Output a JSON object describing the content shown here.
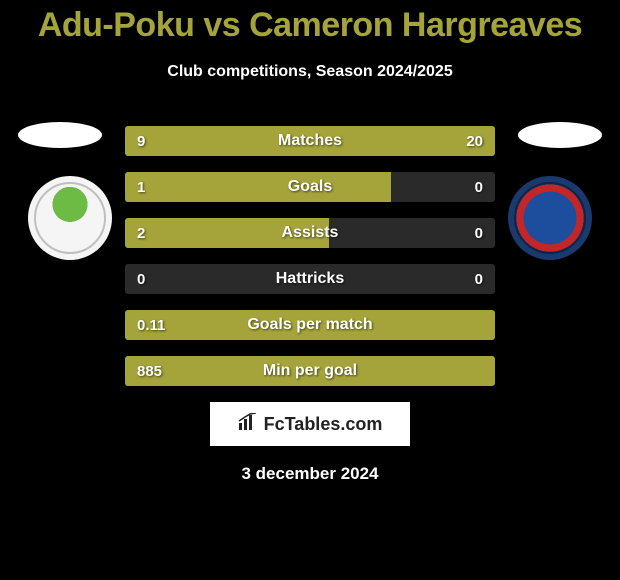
{
  "title": "Adu-Poku vs Cameron Hargreaves",
  "subtitle": "Club competitions, Season 2024/2025",
  "date": "3 december 2024",
  "footer_brand": "FcTables.com",
  "colors": {
    "accent": "#a5a43a",
    "bar_left": "#a5a43a",
    "bar_right_matches": "#a5a43a",
    "bar_neutral": "#2a2a2a",
    "background": "#000000",
    "text": "#ffffff"
  },
  "stats": [
    {
      "label": "Matches",
      "left_value": "9",
      "right_value": "20",
      "left_num": 9,
      "right_num": 20,
      "left_width_pct": 31.0,
      "right_width_pct": 69.0,
      "left_color": "#a5a43a",
      "right_color": "#a5a43a"
    },
    {
      "label": "Goals",
      "left_value": "1",
      "right_value": "0",
      "left_num": 1,
      "right_num": 0,
      "left_width_pct": 72.0,
      "right_width_pct": 0.0,
      "left_color": "#a5a43a",
      "right_color": "#2a2a2a"
    },
    {
      "label": "Assists",
      "left_value": "2",
      "right_value": "0",
      "left_num": 2,
      "right_num": 0,
      "left_width_pct": 55.0,
      "right_width_pct": 0.0,
      "left_color": "#a5a43a",
      "right_color": "#2a2a2a"
    },
    {
      "label": "Hattricks",
      "left_value": "0",
      "right_value": "0",
      "left_num": 0,
      "right_num": 0,
      "left_width_pct": 0.0,
      "right_width_pct": 0.0,
      "left_color": "#2a2a2a",
      "right_color": "#2a2a2a"
    },
    {
      "label": "Goals per match",
      "left_value": "0.11",
      "right_value": "",
      "left_num": 0.11,
      "right_num": null,
      "left_width_pct": 100.0,
      "right_width_pct": 0.0,
      "left_color": "#a5a43a",
      "right_color": "#2a2a2a"
    },
    {
      "label": "Min per goal",
      "left_value": "885",
      "right_value": "",
      "left_num": 885,
      "right_num": null,
      "left_width_pct": 100.0,
      "right_width_pct": 0.0,
      "left_color": "#a5a43a",
      "right_color": "#2a2a2a"
    }
  ]
}
